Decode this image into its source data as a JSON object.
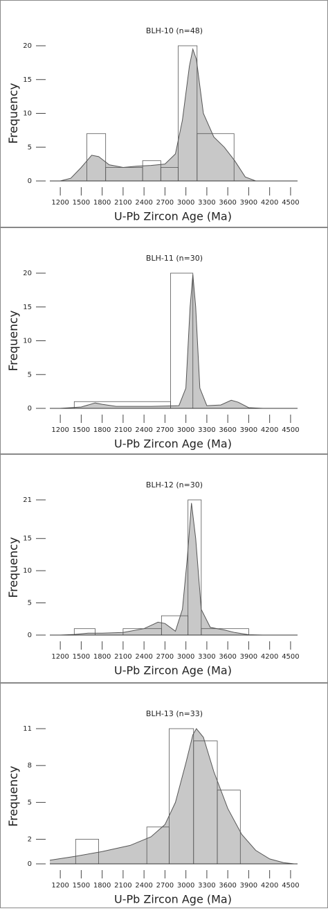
{
  "chart_data": [
    {
      "type": "histogram",
      "title": "BLH-10 (n=48)",
      "xlabel": "U-Pb Zircon Age (Ma)",
      "ylabel": "Frequency",
      "xlim": [
        1050,
        4600
      ],
      "ylim": [
        0,
        20
      ],
      "yticks": [
        0,
        5,
        10,
        15,
        20
      ],
      "xticks": [
        1200,
        1500,
        1800,
        2100,
        2400,
        2700,
        3000,
        3300,
        3600,
        3900,
        4200,
        4500
      ],
      "bins": [
        1580,
        1850,
        2380,
        2640,
        2890,
        3160,
        3690
      ],
      "counts": [
        7,
        2,
        3,
        2,
        20,
        7
      ],
      "kde": {
        "x": [
          1200,
          1350,
          1500,
          1650,
          1750,
          1900,
          2100,
          2300,
          2500,
          2700,
          2850,
          2950,
          3050,
          3100,
          3150,
          3250,
          3400,
          3550,
          3700,
          3850,
          4000
        ],
        "y": [
          0,
          0.4,
          2,
          3.8,
          3.6,
          2.4,
          2,
          2.2,
          2.3,
          2.5,
          4,
          9,
          17,
          19.5,
          18,
          10,
          6.5,
          5,
          3,
          0.6,
          0
        ]
      },
      "color": "#c8c8c8",
      "line_color": "#555555"
    },
    {
      "type": "histogram",
      "title": "BLH-11 (n=30)",
      "xlabel": "U-Pb Zircon Age (Ma)",
      "ylabel": "Frequency",
      "xlim": [
        1050,
        4600
      ],
      "ylim": [
        0,
        20
      ],
      "yticks": [
        0,
        5,
        10,
        15,
        20
      ],
      "xticks": [
        1200,
        1500,
        1800,
        2100,
        2400,
        2700,
        3000,
        3300,
        3600,
        3900,
        4200,
        4500
      ],
      "bins": [
        1400,
        2780,
        3100
      ],
      "counts": [
        1,
        20
      ],
      "kde": {
        "x": [
          1200,
          1500,
          1700,
          1800,
          2000,
          2500,
          2900,
          3000,
          3060,
          3100,
          3140,
          3200,
          3300,
          3500,
          3650,
          3750,
          3900,
          4100
        ],
        "y": [
          0,
          0.2,
          0.8,
          0.6,
          0.3,
          0.3,
          0.4,
          3,
          15,
          19.8,
          15,
          3,
          0.4,
          0.5,
          1.2,
          0.9,
          0.1,
          0
        ]
      },
      "color": "#c8c8c8",
      "line_color": "#555555"
    },
    {
      "type": "histogram",
      "title": "BLH-12 (n=30)",
      "xlabel": "U-Pb Zircon Age (Ma)",
      "ylabel": "Frequency",
      "xlim": [
        1050,
        4600
      ],
      "ylim": [
        0,
        21
      ],
      "yticks": [
        0,
        5,
        10,
        15,
        21
      ],
      "xticks": [
        1200,
        1500,
        1800,
        2100,
        2400,
        2700,
        3000,
        3300,
        3600,
        3900,
        4200,
        4500
      ],
      "bins": [
        1400,
        1700,
        2100,
        2650,
        3030,
        3220,
        3900
      ],
      "counts": [
        1,
        0,
        1,
        3,
        21,
        1
      ],
      "kde": {
        "x": [
          1200,
          1400,
          1600,
          1800,
          2100,
          2400,
          2600,
          2700,
          2850,
          2950,
          3020,
          3080,
          3140,
          3220,
          3350,
          3550,
          3700,
          3900,
          4100
        ],
        "y": [
          0,
          0.1,
          0.3,
          0.3,
          0.4,
          1,
          2,
          1.8,
          0.6,
          4,
          12,
          20.5,
          15,
          4,
          1.2,
          0.8,
          0.4,
          0.05,
          0
        ]
      },
      "color": "#c8c8c8",
      "line_color": "#555555"
    },
    {
      "type": "histogram",
      "title": "BLH-13 (n=33)",
      "xlabel": "U-Pb Zircon Age (Ma)",
      "ylabel": "Frequency",
      "xlim": [
        1050,
        4600
      ],
      "ylim": [
        0,
        11
      ],
      "yticks": [
        0,
        2,
        5,
        8,
        11
      ],
      "xticks": [
        1200,
        1500,
        1800,
        2100,
        2400,
        2700,
        3000,
        3300,
        3600,
        3900,
        4200,
        4500
      ],
      "bins": [
        1420,
        1750,
        2440,
        2760,
        3110,
        3450,
        3780
      ],
      "counts": [
        2,
        0,
        3,
        11,
        10,
        6
      ],
      "kde": {
        "x": [
          1050,
          1400,
          1800,
          2200,
          2500,
          2700,
          2850,
          3000,
          3100,
          3150,
          3250,
          3400,
          3600,
          3800,
          4000,
          4200,
          4400,
          4550
        ],
        "y": [
          0.3,
          0.6,
          1,
          1.5,
          2.2,
          3.2,
          5,
          8.2,
          10.5,
          11,
          10.3,
          7.5,
          4.5,
          2.4,
          1.1,
          0.4,
          0.1,
          0
        ]
      },
      "color": "#c8c8c8",
      "line_color": "#555555"
    }
  ]
}
